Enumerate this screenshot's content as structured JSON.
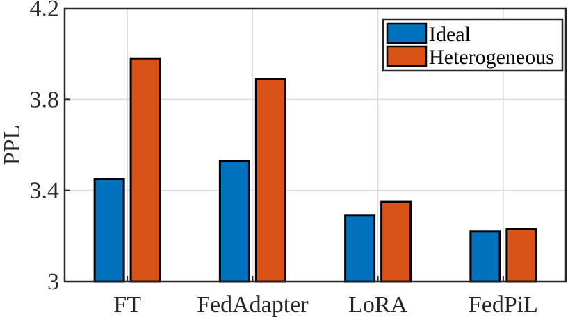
{
  "chart_data": {
    "type": "bar",
    "title": "",
    "xlabel": "",
    "ylabel": "PPL",
    "ylim": [
      3,
      4.2
    ],
    "yticks": [
      3,
      3.4,
      3.8,
      4.2
    ],
    "ytick_labels": [
      "3",
      "3.4",
      "3.8",
      "4.2"
    ],
    "grid": true,
    "legend_position": "top-right",
    "categories": [
      "FT",
      "FedAdapter",
      "LoRA",
      "FedPiL"
    ],
    "series": [
      {
        "name": "Ideal",
        "color": "#0072BD",
        "values": [
          3.45,
          3.53,
          3.29,
          3.22
        ]
      },
      {
        "name": "Heterogeneous",
        "color": "#D95319",
        "values": [
          3.98,
          3.89,
          3.35,
          3.23
        ]
      }
    ]
  }
}
